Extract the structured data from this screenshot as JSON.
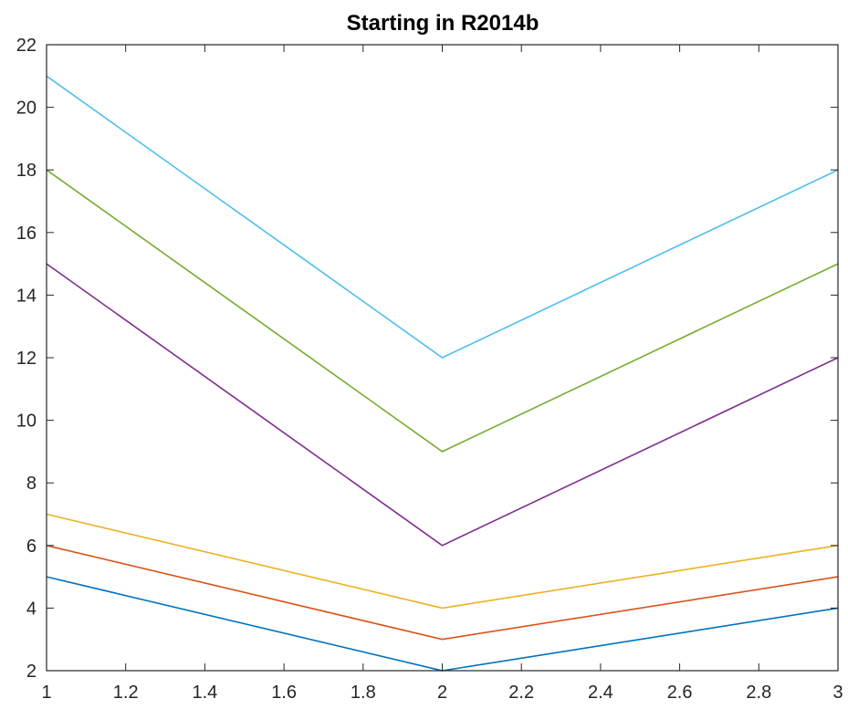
{
  "chart_data": {
    "type": "line",
    "title": "Starting in R2014b",
    "xlabel": "",
    "ylabel": "",
    "x": [
      1,
      2,
      3
    ],
    "xlim": [
      1,
      3
    ],
    "ylim": [
      2,
      22
    ],
    "xticks": [
      "1",
      "1.2",
      "1.4",
      "1.6",
      "1.8",
      "2",
      "2.2",
      "2.4",
      "2.6",
      "2.8",
      "3"
    ],
    "yticks": [
      "2",
      "4",
      "6",
      "8",
      "10",
      "12",
      "14",
      "16",
      "18",
      "20",
      "22"
    ],
    "grid": false,
    "legend": "none",
    "series": [
      {
        "values": [
          5,
          2,
          4
        ],
        "color": "#0072BD"
      },
      {
        "values": [
          6,
          3,
          5
        ],
        "color": "#D95319"
      },
      {
        "values": [
          7,
          4,
          6
        ],
        "color": "#EDB120"
      },
      {
        "values": [
          15,
          6,
          12
        ],
        "color": "#7E2F8E"
      },
      {
        "values": [
          18,
          9,
          15
        ],
        "color": "#77AC30"
      },
      {
        "values": [
          21,
          12,
          18
        ],
        "color": "#4DBEEE"
      }
    ]
  }
}
